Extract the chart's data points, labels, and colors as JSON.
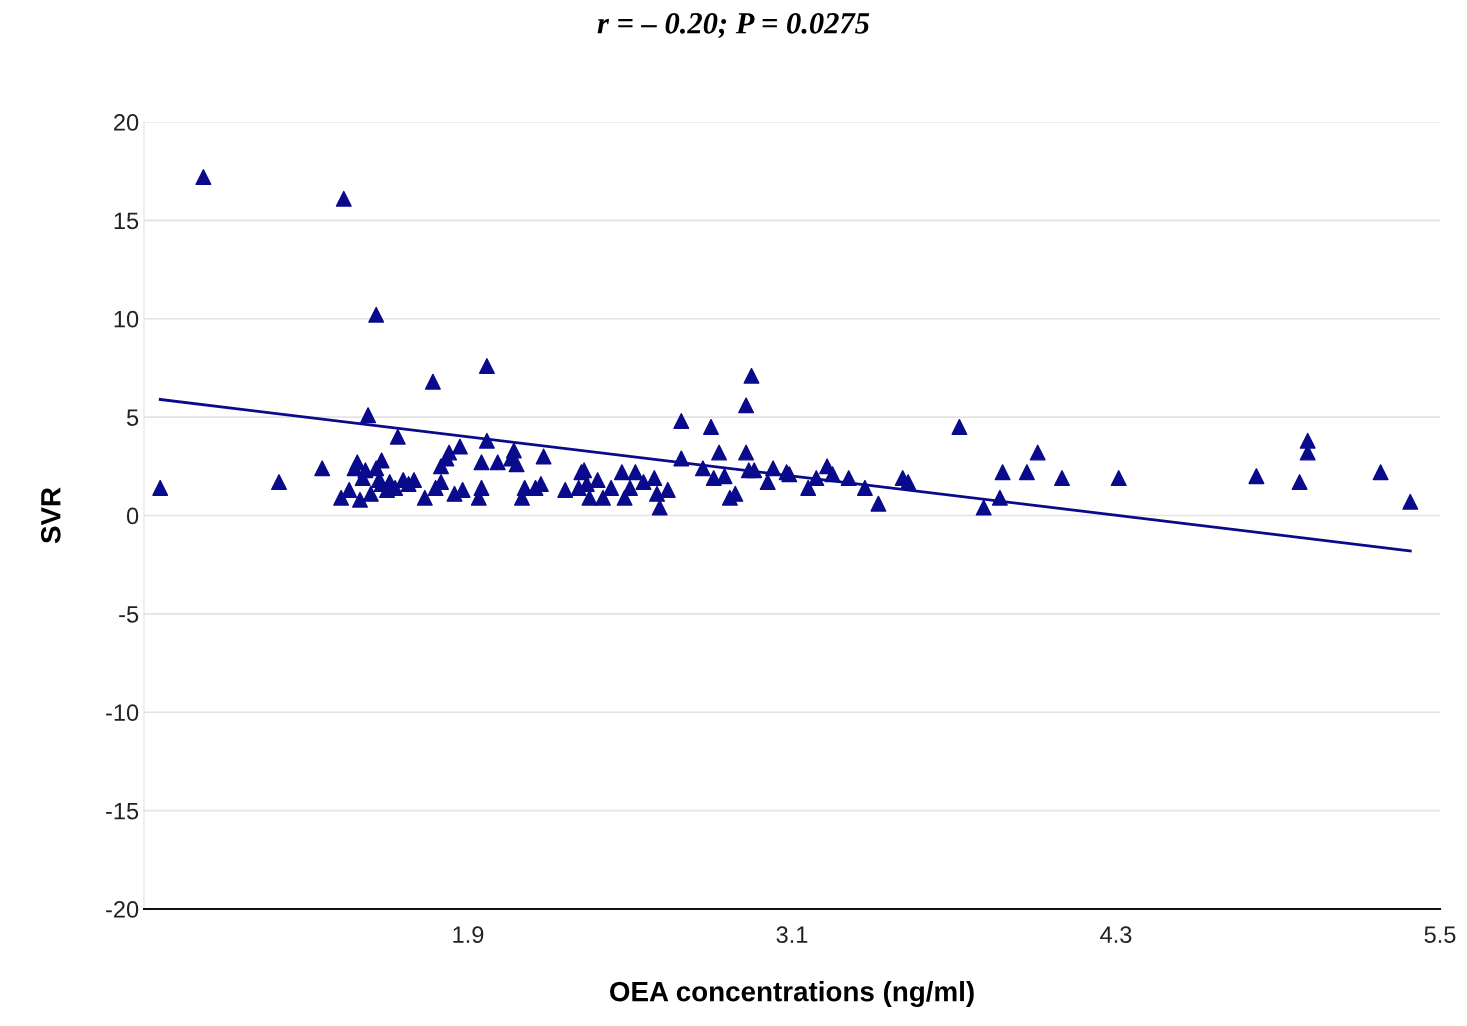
{
  "chart_data": {
    "type": "scatter",
    "title": "r = – 0.20; P = 0.0275",
    "xlabel": "OEA concentrations (ng/ml)",
    "ylabel": "SVR",
    "xlim": [
      0.7,
      5.5
    ],
    "xticks": [
      1.9,
      3.1,
      4.3,
      5.5
    ],
    "ylim": [
      -20,
      20
    ],
    "yticks": [
      -20,
      -15,
      -10,
      -5,
      0,
      5,
      10,
      15,
      20
    ],
    "grid": "y",
    "marker": "triangle",
    "series": [
      {
        "color": "#0a0a8c",
        "x": [
          0.76,
          0.92,
          1.2,
          1.36,
          1.44,
          1.43,
          1.46,
          1.48,
          1.49,
          1.5,
          1.51,
          1.52,
          1.53,
          1.54,
          1.56,
          1.56,
          1.57,
          1.58,
          1.58,
          1.6,
          1.61,
          1.63,
          1.64,
          1.66,
          1.68,
          1.7,
          1.74,
          1.77,
          1.78,
          1.8,
          1.8,
          1.82,
          1.83,
          1.85,
          1.87,
          1.88,
          1.94,
          1.95,
          1.95,
          1.97,
          1.97,
          2.01,
          2.06,
          2.07,
          2.08,
          2.1,
          2.11,
          2.15,
          2.17,
          2.18,
          2.26,
          2.31,
          2.32,
          2.33,
          2.34,
          2.35,
          2.38,
          2.4,
          2.43,
          2.47,
          2.48,
          2.5,
          2.52,
          2.55,
          2.59,
          2.6,
          2.61,
          2.64,
          2.69,
          2.69,
          2.77,
          2.8,
          2.81,
          2.83,
          2.85,
          2.87,
          2.89,
          2.93,
          2.93,
          2.94,
          2.95,
          2.96,
          3.01,
          3.03,
          3.08,
          3.09,
          3.16,
          3.19,
          3.23,
          3.25,
          3.31,
          3.37,
          3.42,
          3.51,
          3.53,
          3.72,
          3.81,
          3.87,
          3.88,
          3.97,
          4.01,
          4.1,
          4.31,
          4.82,
          4.98,
          5.01,
          5.01,
          5.28,
          5.39
        ],
        "values": [
          1.4,
          17.2,
          1.7,
          2.4,
          16.1,
          0.9,
          1.3,
          2.4,
          2.7,
          0.8,
          1.9,
          2.3,
          5.1,
          1.1,
          2.4,
          10.2,
          1.8,
          2.8,
          1.6,
          1.3,
          1.7,
          1.4,
          4.0,
          1.8,
          1.6,
          1.8,
          0.9,
          6.8,
          1.4,
          1.7,
          2.5,
          2.9,
          3.2,
          1.1,
          3.5,
          1.3,
          0.9,
          1.4,
          2.7,
          3.8,
          7.6,
          2.7,
          2.9,
          3.3,
          2.6,
          0.9,
          1.4,
          1.4,
          1.6,
          3.0,
          1.3,
          1.4,
          2.2,
          2.3,
          1.6,
          0.9,
          1.8,
          0.9,
          1.4,
          2.2,
          0.9,
          1.4,
          2.2,
          1.7,
          1.9,
          1.1,
          0.4,
          1.3,
          4.8,
          2.9,
          2.4,
          4.5,
          1.9,
          3.2,
          2.0,
          0.9,
          1.1,
          5.6,
          3.2,
          2.3,
          7.1,
          2.3,
          1.7,
          2.4,
          2.2,
          2.1,
          1.4,
          1.9,
          2.5,
          2.1,
          1.9,
          1.4,
          0.6,
          1.9,
          1.7,
          4.5,
          0.4,
          0.9,
          2.2,
          2.2,
          3.2,
          1.9,
          1.9,
          2.0,
          1.7,
          3.8,
          3.2,
          2.2,
          0.7
        ]
      },
      {
        "type": "line",
        "color": "#0a0a8c",
        "x": [
          0.76,
          5.39
        ],
        "values": [
          5.9,
          -1.8
        ],
        "marker": "none",
        "line_style": "solid"
      }
    ]
  }
}
